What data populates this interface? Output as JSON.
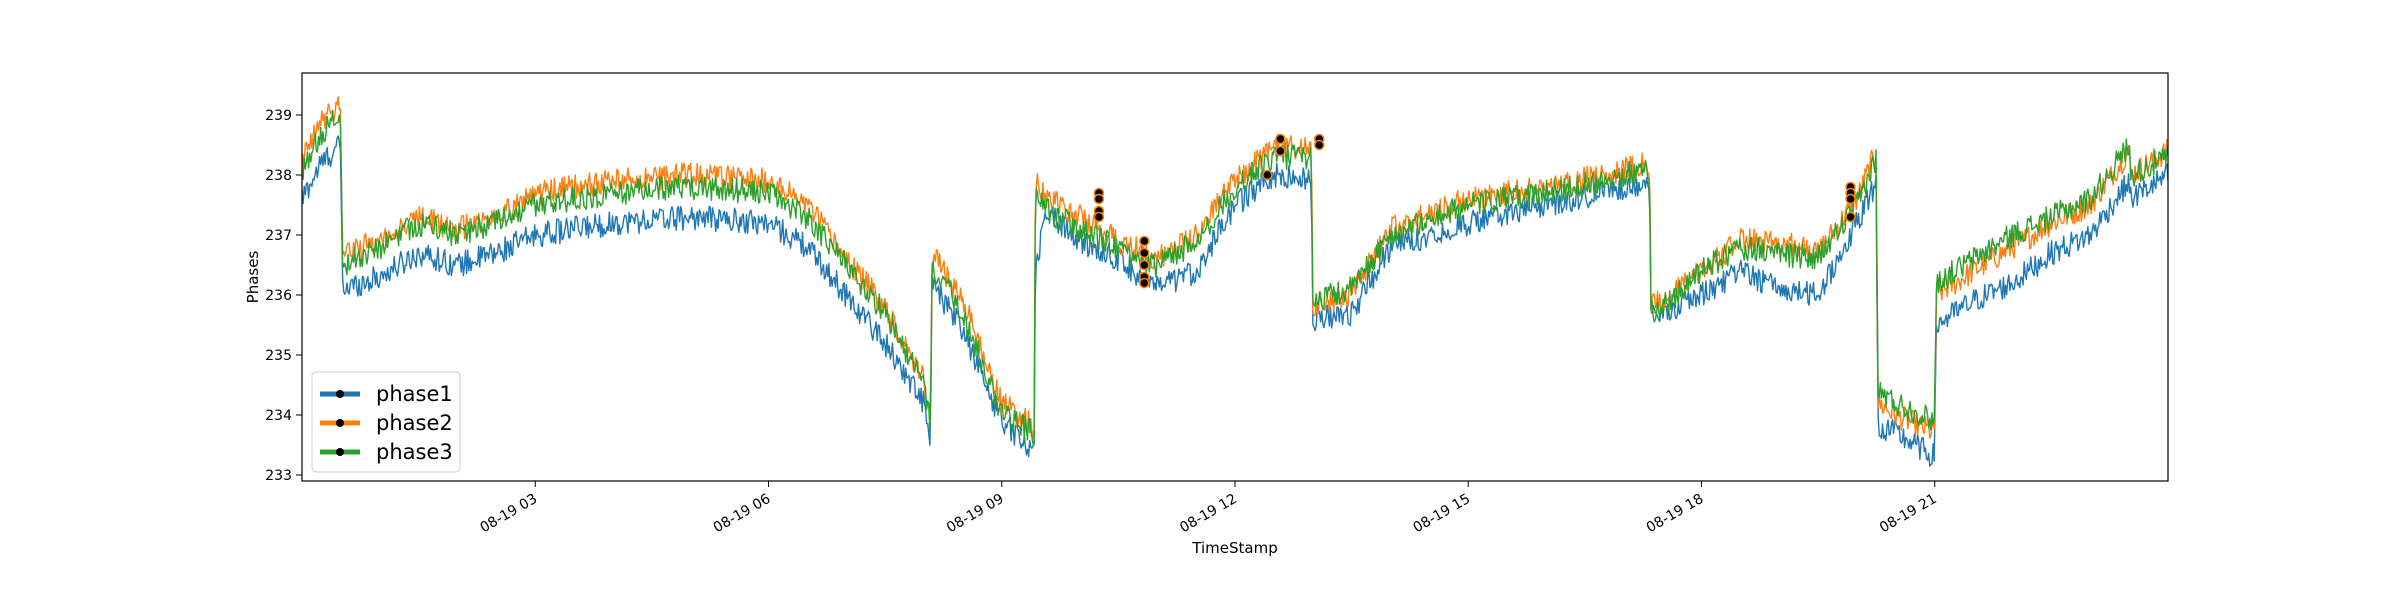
{
  "chart_data": {
    "type": "line",
    "title": "",
    "xlabel": "TimeStamp",
    "ylabel": "Phases",
    "xlim": [
      "2019-08-19 00:00",
      "2019-08-20 00:00"
    ],
    "ylim": [
      232.9,
      239.7
    ],
    "x_ticks": [
      {
        "t": "2019-08-19 03:00",
        "label": "08-19 03"
      },
      {
        "t": "2019-08-19 06:00",
        "label": "08-19 06"
      },
      {
        "t": "2019-08-19 09:00",
        "label": "08-19 09"
      },
      {
        "t": "2019-08-19 12:00",
        "label": "08-19 12"
      },
      {
        "t": "2019-08-19 15:00",
        "label": "08-19 15"
      },
      {
        "t": "2019-08-19 18:00",
        "label": "08-19 18"
      },
      {
        "t": "2019-08-19 21:00",
        "label": "08-19 21"
      }
    ],
    "y_ticks": [
      233,
      234,
      235,
      236,
      237,
      238,
      239
    ],
    "grid": false,
    "legend": "lower-left",
    "x": [
      "00:00",
      "00:15",
      "00:30",
      "00:31",
      "01:00",
      "01:30",
      "02:00",
      "02:30",
      "03:00",
      "04:00",
      "05:00",
      "06:00",
      "06:30",
      "07:00",
      "07:30",
      "08:00",
      "08:05",
      "08:06",
      "08:30",
      "09:00",
      "09:25",
      "09:26",
      "09:35",
      "10:00",
      "10:30",
      "11:00",
      "11:30",
      "12:00",
      "12:30",
      "12:59",
      "13:00",
      "13:30",
      "14:00",
      "15:00",
      "16:00",
      "17:00",
      "17:20",
      "17:21",
      "17:30",
      "18:00",
      "18:30",
      "19:00",
      "19:30",
      "20:00",
      "20:15",
      "20:16",
      "20:30",
      "21:00",
      "21:01",
      "21:30",
      "22:00",
      "22:30",
      "23:00",
      "23:30",
      "23:31",
      "24:00"
    ],
    "series": [
      {
        "name": "phase1",
        "color": "#1f77b4",
        "values": [
          237.6,
          238.2,
          238.5,
          236.1,
          236.3,
          236.7,
          236.5,
          236.7,
          237.0,
          237.2,
          237.3,
          237.2,
          236.8,
          236.0,
          235.2,
          234.2,
          233.4,
          236.2,
          235.4,
          233.9,
          233.4,
          236.5,
          237.4,
          236.9,
          236.6,
          236.1,
          236.4,
          237.5,
          238.0,
          237.9,
          235.6,
          235.7,
          236.8,
          237.2,
          237.5,
          237.8,
          237.9,
          235.6,
          235.7,
          236.0,
          236.4,
          236.1,
          236.0,
          237.2,
          237.9,
          233.8,
          233.7,
          233.3,
          235.5,
          235.9,
          236.2,
          236.7,
          237.0,
          237.9,
          237.6,
          238.0
        ]
      },
      {
        "name": "phase2",
        "color": "#ff7f0e",
        "values": [
          238.2,
          238.9,
          239.2,
          236.7,
          236.9,
          237.3,
          237.1,
          237.3,
          237.7,
          237.9,
          238.0,
          237.9,
          237.5,
          236.6,
          235.8,
          234.6,
          233.9,
          236.7,
          235.9,
          234.2,
          233.8,
          237.9,
          237.6,
          237.3,
          236.9,
          236.6,
          237.0,
          237.9,
          238.5,
          238.4,
          235.8,
          236.0,
          237.1,
          237.6,
          237.8,
          238.1,
          238.2,
          235.8,
          235.9,
          236.4,
          236.9,
          236.9,
          236.7,
          237.6,
          238.4,
          234.2,
          234.0,
          233.7,
          236.0,
          236.4,
          236.8,
          237.2,
          237.5,
          238.4,
          238.0,
          238.4
        ]
      },
      {
        "name": "phase3",
        "color": "#2ca02c",
        "values": [
          238.0,
          238.7,
          239.0,
          236.5,
          236.8,
          237.2,
          237.0,
          237.2,
          237.5,
          237.7,
          237.8,
          237.7,
          237.3,
          236.5,
          235.7,
          234.5,
          233.8,
          236.5,
          235.7,
          234.0,
          233.7,
          237.8,
          237.4,
          237.1,
          236.8,
          236.5,
          236.9,
          237.8,
          238.3,
          238.3,
          235.9,
          236.1,
          237.0,
          237.5,
          237.7,
          238.0,
          238.1,
          235.7,
          235.8,
          236.4,
          236.8,
          236.7,
          236.6,
          237.5,
          238.3,
          234.4,
          234.2,
          233.9,
          236.2,
          236.6,
          237.0,
          237.3,
          237.6,
          238.5,
          238.0,
          238.3
        ]
      }
    ],
    "markers": [
      {
        "x": "10:15",
        "values": [
          237.7,
          237.6,
          237.4,
          237.3
        ]
      },
      {
        "x": "10:50",
        "values": [
          236.9,
          236.7,
          236.5,
          236.3,
          236.2
        ]
      },
      {
        "x": "12:25",
        "values": [
          238.0
        ]
      },
      {
        "x": "12:35",
        "values": [
          238.6,
          238.4
        ]
      },
      {
        "x": "13:05",
        "values": [
          238.6,
          238.5
        ]
      },
      {
        "x": "19:55",
        "values": [
          237.8,
          237.7,
          237.6,
          237.3
        ]
      }
    ]
  }
}
